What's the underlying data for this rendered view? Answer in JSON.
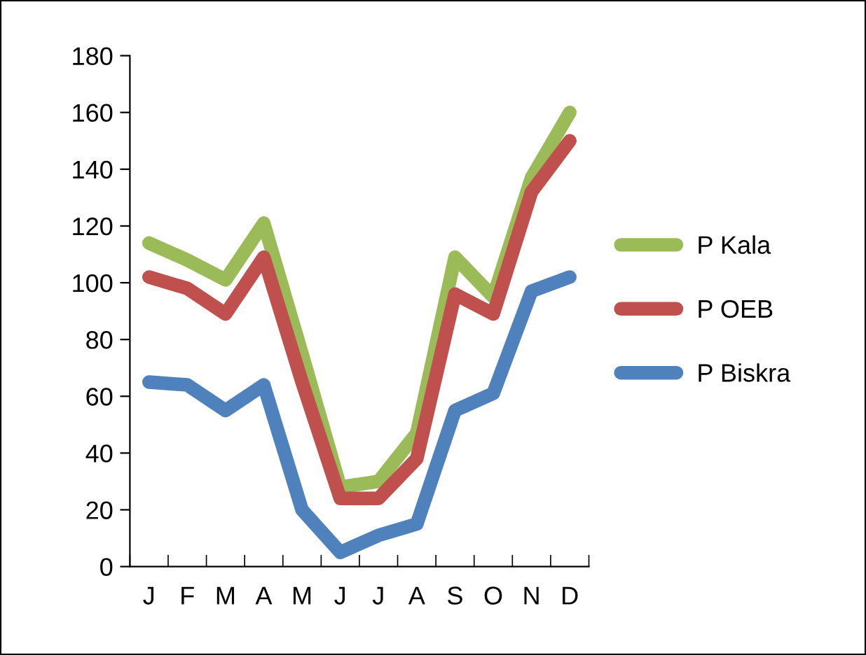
{
  "chart_data": {
    "type": "line",
    "categories": [
      "J",
      "F",
      "M",
      "A",
      "M",
      "J",
      "J",
      "A",
      "S",
      "O",
      "N",
      "D"
    ],
    "series": [
      {
        "name": "P Kala",
        "color": "#9bbb59",
        "values": [
          114,
          108,
          101,
          121,
          75,
          28,
          30,
          47,
          109,
          95,
          137,
          160
        ]
      },
      {
        "name": "P OEB",
        "color": "#c0504d",
        "values": [
          102,
          98,
          89,
          109,
          65,
          24,
          24,
          38,
          96,
          89,
          132,
          150
        ]
      },
      {
        "name": "P Biskra",
        "color": "#4f81bd",
        "values": [
          65,
          64,
          55,
          64,
          20,
          5,
          11,
          15,
          55,
          61,
          97,
          102
        ]
      }
    ],
    "ylim": [
      0,
      180
    ],
    "yticks": [
      0,
      20,
      40,
      60,
      80,
      100,
      120,
      140,
      160,
      180
    ],
    "grid": false,
    "legend": "right",
    "marker": "none",
    "line_style": "solid"
  }
}
